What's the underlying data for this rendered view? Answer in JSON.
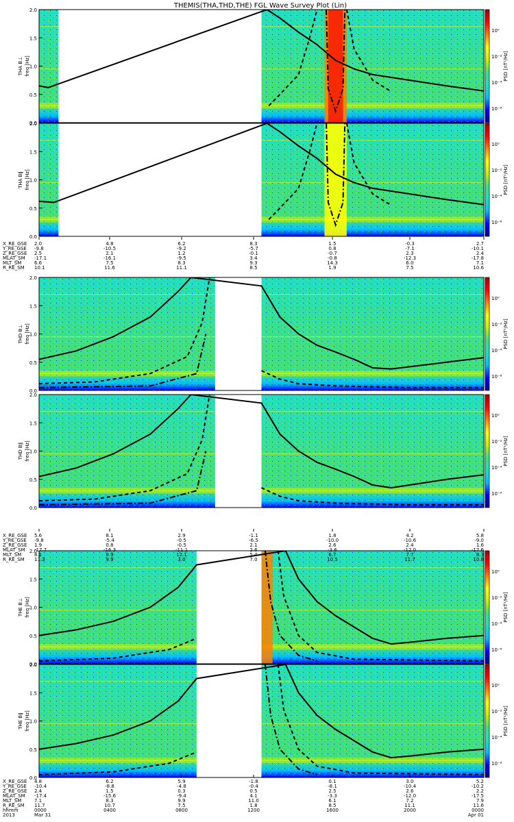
{
  "chart_data": {
    "type": "heatmap",
    "title": "THEMIS(THA,THD,THE) FGL Wave Survey Plot (Lin)",
    "freq_ylim": [
      0,
      2.0
    ],
    "freq_ticks": [
      "0.0",
      "0.5",
      "1.0",
      "1.5",
      "2.0"
    ],
    "colorbar": {
      "label": "PSD [nT²/Hz]",
      "ticks": [
        "10⁰",
        "10⁻²",
        "10⁻⁴",
        "10⁻⁶"
      ]
    },
    "colormap": [
      "#000080",
      "#0000ff",
      "#00bfff",
      "#20e0c0",
      "#40e080",
      "#c8f000",
      "#ffff00",
      "#ff8000",
      "#ff0000",
      "#a00000"
    ],
    "panels": [
      {
        "label": "THA B⊥",
        "ylabel": "freq [Hz]",
        "spacecraft": "THA",
        "component": "perp",
        "data_hours": [
          [
            0,
            1.05
          ],
          [
            12.0,
            24.0
          ]
        ],
        "solid_curve": [
          [
            0,
            0.65
          ],
          [
            0.5,
            0.62
          ],
          [
            12.3,
            2.1
          ],
          [
            13,
            1.85
          ],
          [
            14,
            1.6
          ],
          [
            15,
            1.38
          ],
          [
            16,
            1.1
          ],
          [
            17,
            0.95
          ],
          [
            18,
            0.85
          ],
          [
            20,
            0.75
          ],
          [
            22,
            0.65
          ],
          [
            24,
            0.56
          ]
        ],
        "dashed_curve": [
          [
            12.4,
            0.3
          ],
          [
            13,
            0.5
          ],
          [
            14,
            0.85
          ],
          [
            14.6,
            1.5
          ],
          [
            15.0,
            2.0
          ]
        ],
        "dashed_curve_right": [
          [
            16.6,
            2.0
          ],
          [
            17,
            1.3
          ],
          [
            18,
            0.75
          ],
          [
            19,
            0.55
          ]
        ],
        "dashdot_curve": [
          [
            15.5,
            2.0
          ],
          [
            15.6,
            0.6
          ],
          [
            16.0,
            0.2
          ],
          [
            16.4,
            0.6
          ],
          [
            16.5,
            2.0
          ]
        ]
      },
      {
        "label": "THA B∥",
        "ylabel": "freq [Hz]",
        "spacecraft": "THA",
        "component": "par",
        "data_hours": [
          [
            0,
            1.05
          ],
          [
            12.0,
            24.0
          ]
        ],
        "solid_curve": [
          [
            0,
            0.62
          ],
          [
            0.8,
            0.6
          ],
          [
            12.3,
            2.1
          ],
          [
            13,
            1.85
          ],
          [
            14,
            1.6
          ],
          [
            15,
            1.38
          ],
          [
            16,
            1.1
          ],
          [
            17,
            0.95
          ],
          [
            18,
            0.85
          ],
          [
            20,
            0.75
          ],
          [
            22,
            0.65
          ],
          [
            24,
            0.56
          ]
        ],
        "dashed_curve": [
          [
            12.4,
            0.3
          ],
          [
            13,
            0.5
          ],
          [
            14,
            0.85
          ],
          [
            14.6,
            1.5
          ],
          [
            15.0,
            2.0
          ]
        ],
        "dashed_curve_right": [
          [
            16.6,
            2.0
          ],
          [
            17,
            1.3
          ],
          [
            18,
            0.75
          ],
          [
            19,
            0.55
          ]
        ],
        "dashdot_curve": [
          [
            15.5,
            2.0
          ],
          [
            15.6,
            0.6
          ],
          [
            16.0,
            0.2
          ],
          [
            16.4,
            0.6
          ],
          [
            16.5,
            2.0
          ]
        ]
      },
      {
        "label": "THD B⊥",
        "ylabel": "freq [Hz]",
        "spacecraft": "THD",
        "component": "perp",
        "data_hours": [
          [
            0,
            9.5
          ],
          [
            12.0,
            24.0
          ]
        ],
        "solid_curve": [
          [
            0,
            0.55
          ],
          [
            2,
            0.7
          ],
          [
            4,
            0.95
          ],
          [
            6,
            1.3
          ],
          [
            7.5,
            1.75
          ],
          [
            8.2,
            2.1
          ],
          [
            12.0,
            1.85
          ],
          [
            13,
            1.3
          ],
          [
            14,
            1.0
          ],
          [
            15,
            0.8
          ],
          [
            16,
            0.68
          ],
          [
            17,
            0.55
          ],
          [
            18,
            0.4
          ],
          [
            19,
            0.38
          ],
          [
            20,
            0.42
          ],
          [
            22,
            0.5
          ],
          [
            24,
            0.58
          ]
        ],
        "dashed_curve": [
          [
            0,
            0.12
          ],
          [
            3,
            0.15
          ],
          [
            6,
            0.3
          ],
          [
            8,
            0.6
          ],
          [
            8.8,
            1.2
          ],
          [
            9.2,
            2.0
          ]
        ],
        "dashed_curve_right": [
          [
            12.0,
            0.35
          ],
          [
            13,
            0.2
          ],
          [
            14,
            0.12
          ],
          [
            16,
            0.08
          ],
          [
            20,
            0.05
          ],
          [
            24,
            0.05
          ]
        ],
        "dashdot_curve": [
          [
            0,
            0.05
          ],
          [
            6,
            0.08
          ],
          [
            8.5,
            0.3
          ],
          [
            9.0,
            1.0
          ]
        ]
      },
      {
        "label": "THD B∥",
        "ylabel": "freq [Hz]",
        "spacecraft": "THD",
        "component": "par",
        "data_hours": [
          [
            0,
            9.5
          ],
          [
            12.0,
            24.0
          ]
        ],
        "solid_curve": [
          [
            0,
            0.55
          ],
          [
            2,
            0.7
          ],
          [
            4,
            0.95
          ],
          [
            6,
            1.3
          ],
          [
            7.5,
            1.75
          ],
          [
            8.2,
            2.1
          ],
          [
            12.0,
            1.85
          ],
          [
            13,
            1.3
          ],
          [
            14,
            1.0
          ],
          [
            15,
            0.8
          ],
          [
            16,
            0.68
          ],
          [
            17,
            0.55
          ],
          [
            18,
            0.4
          ],
          [
            19,
            0.35
          ],
          [
            20,
            0.4
          ],
          [
            22,
            0.5
          ],
          [
            24,
            0.58
          ]
        ],
        "dashed_curve": [
          [
            0,
            0.12
          ],
          [
            3,
            0.15
          ],
          [
            6,
            0.3
          ],
          [
            8,
            0.6
          ],
          [
            8.8,
            1.2
          ],
          [
            9.2,
            2.0
          ]
        ],
        "dashed_curve_right": [
          [
            12.0,
            0.35
          ],
          [
            13,
            0.2
          ],
          [
            14,
            0.12
          ],
          [
            16,
            0.08
          ],
          [
            20,
            0.05
          ],
          [
            24,
            0.05
          ]
        ],
        "dashdot_curve": [
          [
            0,
            0.05
          ],
          [
            6,
            0.08
          ],
          [
            8.5,
            0.3
          ],
          [
            9.0,
            1.0
          ]
        ]
      },
      {
        "label": "THE B⊥",
        "ylabel": "freq [Hz]",
        "spacecraft": "THE",
        "component": "perp",
        "data_hours": [
          [
            0,
            8.5
          ],
          [
            12.0,
            24.0
          ]
        ],
        "solid_curve": [
          [
            0,
            0.5
          ],
          [
            2,
            0.6
          ],
          [
            4,
            0.75
          ],
          [
            6,
            1.0
          ],
          [
            7.5,
            1.35
          ],
          [
            8.5,
            1.75
          ],
          [
            13.3,
            2.1
          ],
          [
            14,
            1.5
          ],
          [
            15,
            1.1
          ],
          [
            16,
            0.85
          ],
          [
            17,
            0.65
          ],
          [
            18,
            0.45
          ],
          [
            19,
            0.35
          ],
          [
            20,
            0.38
          ],
          [
            22,
            0.45
          ],
          [
            24,
            0.5
          ]
        ],
        "dashed_curve": [
          [
            0,
            0.05
          ],
          [
            4,
            0.1
          ],
          [
            7,
            0.25
          ],
          [
            8.5,
            0.45
          ]
        ],
        "dashed_curve_right": [
          [
            12.9,
            2.0
          ],
          [
            13.2,
            1.2
          ],
          [
            14,
            0.5
          ],
          [
            15,
            0.2
          ],
          [
            17,
            0.08
          ],
          [
            24,
            0.05
          ]
        ],
        "dashdot_curve": [
          [
            12.2,
            2.0
          ],
          [
            12.5,
            1.1
          ],
          [
            13.0,
            0.5
          ],
          [
            14,
            0.15
          ],
          [
            15,
            0.05
          ]
        ]
      },
      {
        "label": "THE B∥",
        "ylabel": "freq [Hz]",
        "spacecraft": "THE",
        "component": "par",
        "data_hours": [
          [
            0,
            8.5
          ],
          [
            12.0,
            24.0
          ]
        ],
        "solid_curve": [
          [
            0,
            0.5
          ],
          [
            2,
            0.6
          ],
          [
            4,
            0.75
          ],
          [
            6,
            1.0
          ],
          [
            7.5,
            1.35
          ],
          [
            8.5,
            1.75
          ],
          [
            13.3,
            2.1
          ],
          [
            14,
            1.5
          ],
          [
            15,
            1.1
          ],
          [
            16,
            0.85
          ],
          [
            17,
            0.65
          ],
          [
            18,
            0.45
          ],
          [
            19,
            0.35
          ],
          [
            20,
            0.38
          ],
          [
            22,
            0.45
          ],
          [
            24,
            0.5
          ]
        ],
        "dashed_curve": [
          [
            0,
            0.05
          ],
          [
            4,
            0.1
          ],
          [
            7,
            0.25
          ],
          [
            8.5,
            0.45
          ]
        ],
        "dashed_curve_right": [
          [
            12.9,
            2.0
          ],
          [
            13.2,
            1.2
          ],
          [
            14,
            0.5
          ],
          [
            15,
            0.2
          ],
          [
            17,
            0.08
          ],
          [
            24,
            0.05
          ]
        ],
        "dashdot_curve": [
          [
            12.2,
            2.0
          ],
          [
            12.5,
            1.1
          ],
          [
            13.0,
            0.5
          ],
          [
            14,
            0.15
          ],
          [
            15,
            0.05
          ]
        ]
      }
    ],
    "orbit_tables": [
      {
        "rows": [
          "X_RE_GSE",
          "Y_RE_GSE",
          "Z_RE_GSE",
          "MLAT_SM",
          "MLT_SM",
          "R_RE_SM"
        ],
        "cols": [
          [
            "2.0",
            "-9.8",
            "2.5",
            "-17.1",
            "6.6",
            "10.1"
          ],
          [
            "4.8",
            "-10.5",
            "2.1",
            "-16.1",
            "7.5",
            "11.6"
          ],
          [
            "6.2",
            "-9.2",
            "1.2",
            "-9.5",
            "8.3",
            "11.1"
          ],
          [
            "8.3",
            "-5.7",
            "-0.1",
            "3.4",
            "9.3",
            "8.5"
          ],
          [
            "1.5",
            "0.8",
            "-0.7",
            "-0.8",
            "14.3",
            "1.9"
          ],
          [
            "-0.3",
            "-7.1",
            "2.3",
            "-12.3",
            "6.0",
            "7.5"
          ],
          [
            "2.7",
            "-10.1",
            "2.4",
            "-17.8",
            "7.1",
            "10.6"
          ]
        ]
      },
      {
        "rows": [
          "X_RE_GSE",
          "Y_RE_GSE",
          "Z_RE_GSE",
          "MLAT_SM",
          "MLT_SM",
          "R_RE_SM"
        ],
        "cols": [
          [
            "5.6",
            "-9.8",
            "1.9",
            "-17.7",
            "8.1",
            "11.3"
          ],
          [
            "8.1",
            "-5.4",
            "0.8",
            "-16.3",
            "8.9",
            "9.9"
          ],
          [
            "2.9",
            "-0.5",
            "-0.5",
            "-11.1",
            "12.1",
            "3.0"
          ],
          [
            "-1.1",
            "-6.5",
            "2.1",
            "2.6",
            "5.4",
            "7.0"
          ],
          [
            "1.8",
            "-10.0",
            "2.6",
            "-3.6",
            "6.7",
            "10.5"
          ],
          [
            "4.2",
            "-10.6",
            "2.4",
            "-12.0",
            "7.7",
            "11.7"
          ],
          [
            "5.8",
            "-9.0",
            "1.6",
            "-17.6",
            "8.3",
            "10.8"
          ]
        ]
      },
      {
        "rows": [
          "X_RE_GSE",
          "Y_RE_GSE",
          "Z_RE_GSE",
          "MLAT_SM",
          "MLT_SM",
          "R_RE_SM",
          "hhmm",
          "2013"
        ],
        "cols": [
          [
            "4.8",
            "-10.4",
            "2.4",
            "-17.4",
            "7.1",
            "11.7",
            "0000",
            "Mar 31"
          ],
          [
            "6.2",
            "-8.8",
            "1.5",
            "-15.6",
            "8.3",
            "10.7",
            "0400",
            ""
          ],
          [
            "5.9",
            "-4.8",
            "0.3",
            "-9.4",
            "9.9",
            "7.5",
            "0800",
            ""
          ],
          [
            "-1.8",
            "-0.4",
            "0.5",
            "4.1",
            "11.0",
            "1.8",
            "1200",
            ""
          ],
          [
            "0.1",
            "-8.1",
            "2.5",
            "-3.3",
            "6.1",
            "8.5",
            "1600",
            ""
          ],
          [
            "3.0",
            "-10.4",
            "2.6",
            "-12.0",
            "7.2",
            "11.1",
            "2000",
            ""
          ],
          [
            "5.2",
            "-10.2",
            "2.2",
            "-17.5",
            "7.9",
            "11.6",
            "0000",
            "Apr 01"
          ]
        ]
      }
    ]
  }
}
